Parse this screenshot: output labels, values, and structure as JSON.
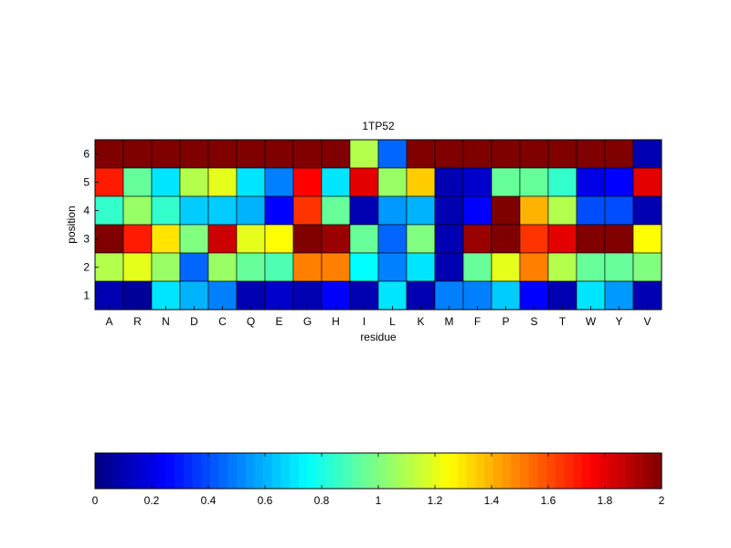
{
  "chart_data": [
    {
      "type": "heatmap",
      "title": "1TP52",
      "xlabel": "residue",
      "ylabel": "position",
      "x_categories": [
        "A",
        "R",
        "N",
        "D",
        "C",
        "Q",
        "E",
        "G",
        "H",
        "I",
        "L",
        "K",
        "M",
        "F",
        "P",
        "S",
        "T",
        "W",
        "Y",
        "V"
      ],
      "y_categories": [
        "1",
        "2",
        "3",
        "4",
        "5",
        "6"
      ],
      "value_range": [
        0,
        2
      ],
      "colormap": "jet",
      "rows": [
        {
          "position": "6",
          "values": [
            2.0,
            2.0,
            2.0,
            2.0,
            2.0,
            2.0,
            2.0,
            2.0,
            2.0,
            1.1,
            0.45,
            2.0,
            2.0,
            2.0,
            2.0,
            2.0,
            2.0,
            2.0,
            2.0,
            0.1
          ]
        },
        {
          "position": "5",
          "values": [
            1.7,
            0.95,
            0.7,
            1.1,
            1.2,
            0.7,
            0.5,
            1.75,
            0.7,
            1.8,
            1.05,
            1.35,
            0.1,
            0.15,
            0.95,
            0.95,
            0.85,
            0.2,
            0.25,
            1.8
          ]
        },
        {
          "position": "4",
          "values": [
            0.85,
            1.05,
            0.85,
            0.65,
            0.65,
            0.6,
            0.25,
            1.65,
            0.95,
            0.1,
            0.55,
            0.6,
            0.1,
            0.25,
            2.0,
            1.4,
            1.1,
            0.4,
            0.4,
            0.1
          ]
        },
        {
          "position": "3",
          "values": [
            2.0,
            1.7,
            1.3,
            1.0,
            1.85,
            1.2,
            1.25,
            2.0,
            1.95,
            0.95,
            0.45,
            1.0,
            0.1,
            1.95,
            2.0,
            1.65,
            1.8,
            2.0,
            2.0,
            1.25
          ]
        },
        {
          "position": "2",
          "values": [
            1.1,
            1.2,
            1.05,
            0.45,
            1.05,
            0.95,
            0.9,
            1.5,
            1.5,
            0.75,
            0.5,
            0.7,
            0.1,
            0.95,
            1.2,
            1.5,
            1.1,
            0.95,
            0.95,
            1.0
          ]
        },
        {
          "position": "1",
          "values": [
            0.1,
            0.05,
            0.7,
            0.6,
            0.5,
            0.1,
            0.15,
            0.1,
            0.25,
            0.1,
            0.7,
            0.1,
            0.5,
            0.5,
            0.65,
            0.25,
            0.1,
            0.7,
            0.55,
            0.1
          ]
        }
      ]
    },
    {
      "type": "colorbar",
      "colormap": "jet",
      "range": [
        0,
        2
      ],
      "ticks": [
        "0",
        "0.2",
        "0.4",
        "0.6",
        "0.8",
        "1",
        "1.2",
        "1.4",
        "1.6",
        "1.8",
        "2"
      ]
    }
  ]
}
